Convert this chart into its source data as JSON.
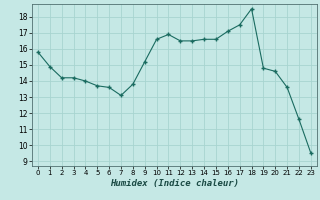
{
  "title": "",
  "xlabel": "Humidex (Indice chaleur)",
  "ylabel": "",
  "background_color": "#c5e8e5",
  "grid_color": "#a8d4d0",
  "line_color": "#1a6b60",
  "marker_color": "#1a6b60",
  "x": [
    0,
    1,
    2,
    3,
    4,
    5,
    6,
    7,
    8,
    9,
    10,
    11,
    12,
    13,
    14,
    15,
    16,
    17,
    18,
    19,
    20,
    21,
    22,
    23
  ],
  "y": [
    15.8,
    14.9,
    14.2,
    14.2,
    14.0,
    13.7,
    13.6,
    13.1,
    13.8,
    15.2,
    16.6,
    16.9,
    16.5,
    16.5,
    16.6,
    16.6,
    17.1,
    17.5,
    18.5,
    14.8,
    14.6,
    13.6,
    11.6,
    9.5
  ],
  "ylim": [
    8.7,
    18.8
  ],
  "yticks": [
    9,
    10,
    11,
    12,
    13,
    14,
    15,
    16,
    17,
    18
  ],
  "xlim": [
    -0.5,
    23.5
  ],
  "xticks": [
    0,
    1,
    2,
    3,
    4,
    5,
    6,
    7,
    8,
    9,
    10,
    11,
    12,
    13,
    14,
    15,
    16,
    17,
    18,
    19,
    20,
    21,
    22,
    23
  ]
}
